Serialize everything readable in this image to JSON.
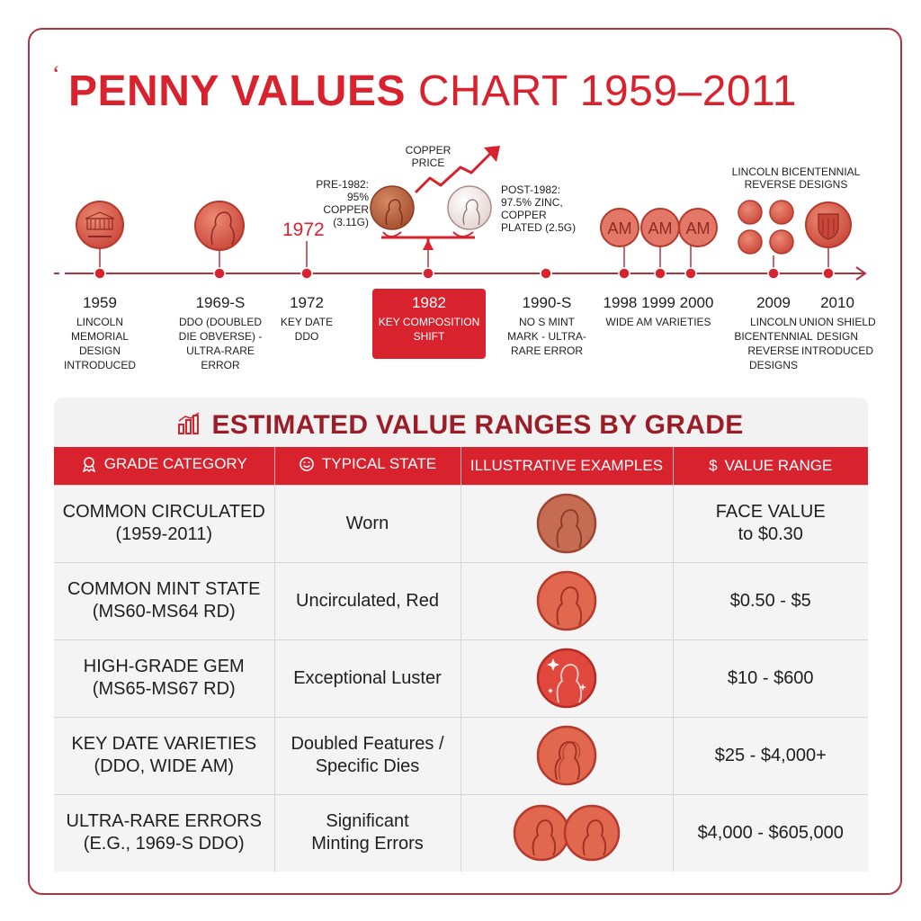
{
  "title": {
    "bold": "PENNY VALUES",
    "light": "CHART 1959–2011"
  },
  "timeline": {
    "events": [
      {
        "year": "1959",
        "text": "LINCOLN MEMORIAL DESIGN INTRODUCED"
      },
      {
        "year": "1969-S",
        "text": "DDO (Doubled Die Obverse) - ULTRA-RARE ERROR"
      },
      {
        "year": "1972",
        "text": "KEY DATE DDO"
      },
      {
        "year": "1982",
        "text": "KEY COMPOSITION SHIFT"
      },
      {
        "year": "1990-S",
        "text": "NO S MINT MARK - ULTRA-RARE ERROR"
      },
      {
        "year": "1998 1999 2000",
        "text": "WIDE AM VARIETIES"
      },
      {
        "year": "2009",
        "text": "LINCOLN BICENTENNIAL REVERSE DESIGNS"
      },
      {
        "year": "2010",
        "text": "UNION SHIELD DESIGN INTRODUCED"
      }
    ],
    "copper_price": "COPPER PRICE",
    "pre_1982": "PRE-1982: 95% COPPER (3.11g)",
    "post_1982": "POST-1982: 97.5% ZINC, COPPER PLATED (2.5g)",
    "year_1972_big": "1972",
    "am_badges": [
      "AM",
      "AM",
      "AM"
    ],
    "bicentennial_title": "LINCOLN BICENTENNIAL REVERSE DESIGNS",
    "colors": {
      "accent": "#d8232f",
      "dark_accent": "#9a1d28",
      "coin": "#d9604c",
      "coin_edge": "#b5392c"
    }
  },
  "table": {
    "title": "ESTIMATED VALUE RANGES BY GRADE",
    "headers": [
      "GRADE CATEGORY",
      "TYPICAL STATE",
      "ILLUSTRATIVE EXAMPLES",
      "VALUE RANGE"
    ],
    "header_icons": [
      "ribbon-icon",
      "face-icon",
      "",
      "dollar-icon"
    ],
    "header_dollar": "$",
    "rows": [
      {
        "category_line1": "COMMON CIRCULATED",
        "category_line2": "(1959-2011)",
        "state_line1": "Worn",
        "state_line2": "",
        "value_line1": "FACE VALUE",
        "value_line2": "to $0.30",
        "coin": "worn-penny"
      },
      {
        "category_line1": "COMMON MINT STATE",
        "category_line2": "(MS60-MS64 RD)",
        "state_line1": "Uncirculated, Red",
        "state_line2": "",
        "value_line1": "$0.50 - $5",
        "value_line2": "",
        "coin": "red-penny"
      },
      {
        "category_line1": "HIGH-GRADE GEM",
        "category_line2": "(MS65-MS67 RD)",
        "state_line1": "Exceptional Luster",
        "state_line2": "",
        "value_line1": "$10 - $600",
        "value_line2": "",
        "coin": "gem-penny"
      },
      {
        "category_line1": "KEY DATE VARIETIES",
        "category_line2": "(DDO, WIDE AM)",
        "state_line1": "Doubled Features /",
        "state_line2": "Specific Dies",
        "value_line1": "$25 - $4,000+",
        "value_line2": "",
        "coin": "ddo-penny"
      },
      {
        "category_line1": "ULTRA-RARE ERRORS",
        "category_line2": "(e.g., 1969-S DDO)",
        "state_line1": "Significant",
        "state_line2": "Minting Errors",
        "value_line1": "$4,000 - $605,000",
        "value_line2": "",
        "coin": "error-pennies"
      }
    ]
  }
}
